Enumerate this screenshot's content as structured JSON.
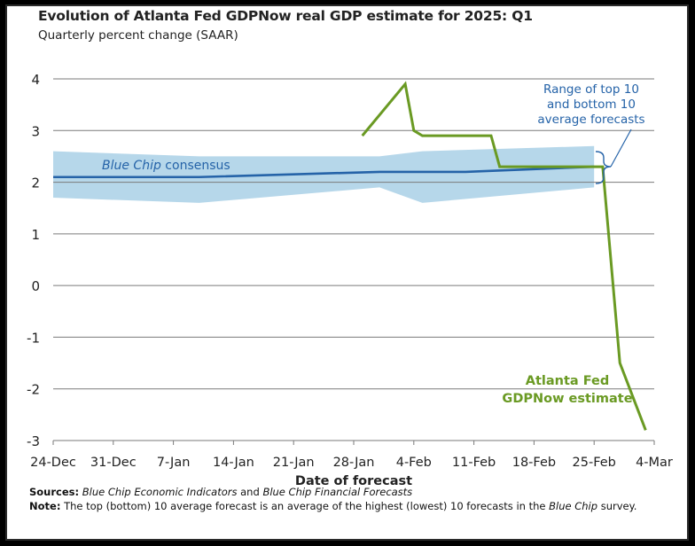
{
  "title": "Evolution of Atlanta Fed GDPNow real GDP estimate for 2025: Q1",
  "subtitle": "Quarterly percent change (SAAR)",
  "colors": {
    "consensus": "#2563a8",
    "band": "#b6d7ea",
    "gdpnow": "#6a9a23",
    "grid": "#7a7a7a",
    "text": "#222222"
  },
  "chart_data": {
    "type": "line",
    "xlabel": "Date of forecast",
    "ylabel": "",
    "ylim": [
      -3,
      4
    ],
    "yticks": [
      4,
      3,
      2,
      1,
      0,
      -1,
      -2,
      -3
    ],
    "ytick_labels": [
      "4",
      "3",
      "2",
      "1",
      "0",
      "-1",
      "-2",
      "-3"
    ],
    "xticks": [
      "2024-12-24",
      "2024-12-31",
      "2025-01-07",
      "2025-01-14",
      "2025-01-21",
      "2025-01-28",
      "2025-02-04",
      "2025-02-11",
      "2025-02-18",
      "2025-02-25",
      "2025-03-04"
    ],
    "xtick_labels": [
      "24-Dec",
      "31-Dec",
      "7-Jan",
      "14-Jan",
      "21-Jan",
      "28-Jan",
      "4-Feb",
      "11-Feb",
      "18-Feb",
      "25-Feb",
      "4-Mar"
    ],
    "series": [
      {
        "name": "Blue Chip consensus",
        "x": [
          "2024-12-24",
          "2025-01-10",
          "2025-01-31",
          "2025-02-10",
          "2025-02-25"
        ],
        "y": [
          2.1,
          2.1,
          2.2,
          2.2,
          2.3
        ]
      },
      {
        "name": "Atlanta Fed GDPNow estimate",
        "x": [
          "2025-01-29",
          "2025-02-03",
          "2025-02-04",
          "2025-02-05",
          "2025-02-13",
          "2025-02-14",
          "2025-02-26",
          "2025-02-28",
          "2025-03-03"
        ],
        "y": [
          2.9,
          3.9,
          3.0,
          2.9,
          2.9,
          2.3,
          2.3,
          -1.5,
          -2.8
        ]
      }
    ],
    "band": {
      "name": "Range of top 10 and bottom 10 average forecasts",
      "x": [
        "2024-12-24",
        "2025-01-10",
        "2025-01-31",
        "2025-02-05",
        "2025-02-25"
      ],
      "upper": [
        2.6,
        2.5,
        2.5,
        2.6,
        2.7
      ],
      "lower": [
        1.7,
        1.6,
        1.9,
        1.6,
        1.9
      ]
    },
    "annotations": {
      "consensus_label_italic": "Blue Chip",
      "consensus_label_rest": " consensus",
      "band_label_lines": [
        "Range of top 10",
        "and bottom 10",
        "average forecasts"
      ],
      "gdpnow_label_lines": [
        "Atlanta Fed",
        "GDPNow estimate"
      ]
    }
  },
  "footer": {
    "sources_label": "Sources:",
    "sources_src1": "Blue Chip Economic Indicators",
    "sources_and": " and ",
    "sources_src2": "Blue Chip Financial Forecasts",
    "note_label": "Note:",
    "note_text_1": " The top (bottom) 10 average forecast is an average of the highest (lowest) 10 forecasts in the ",
    "note_italic": "Blue Chip",
    "note_text_2": " survey."
  }
}
